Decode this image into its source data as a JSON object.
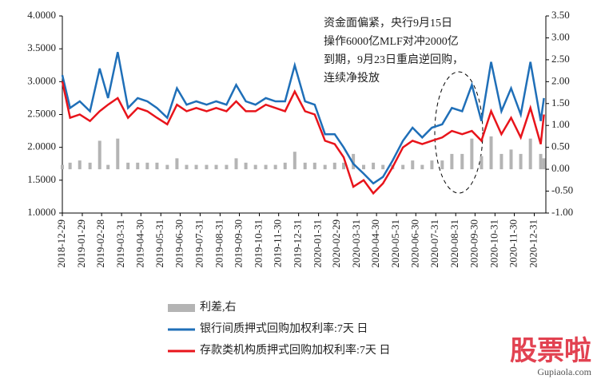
{
  "chart_data": {
    "type": "line",
    "annotation": [
      "资金面偏紧，央行9月15日",
      "操作6000亿MLF对冲2000亿",
      "到期，9月23日重启逆回购，",
      "连续净投放"
    ],
    "x": [
      "2018-12-29",
      "2019-01-10",
      "2019-01-25",
      "2019-02-10",
      "2019-02-25",
      "2019-03-10",
      "2019-03-25",
      "2019-04-10",
      "2019-04-25",
      "2019-05-10",
      "2019-05-25",
      "2019-06-10",
      "2019-06-25",
      "2019-07-10",
      "2019-07-25",
      "2019-08-10",
      "2019-08-25",
      "2019-09-10",
      "2019-09-25",
      "2019-10-10",
      "2019-10-25",
      "2019-11-10",
      "2019-11-25",
      "2019-12-10",
      "2019-12-25",
      "2020-01-10",
      "2020-01-25",
      "2020-02-10",
      "2020-02-25",
      "2020-03-10",
      "2020-03-25",
      "2020-04-10",
      "2020-04-25",
      "2020-05-10",
      "2020-05-25",
      "2020-06-10",
      "2020-06-25",
      "2020-07-10",
      "2020-07-25",
      "2020-08-10",
      "2020-08-25",
      "2020-09-10",
      "2020-09-25",
      "2020-10-10",
      "2020-10-25",
      "2020-11-10",
      "2020-11-25",
      "2020-12-10",
      "2020-12-25",
      "2021-01-10",
      "2021-01-15"
    ],
    "series": [
      {
        "name": "利差,右",
        "color": "#b4b4b4",
        "axis": "y2",
        "kind": "bar",
        "values": [
          0.1,
          0.15,
          0.2,
          0.15,
          0.65,
          0.1,
          0.7,
          0.15,
          0.15,
          0.15,
          0.15,
          0.1,
          0.25,
          0.1,
          0.1,
          0.1,
          0.1,
          0.1,
          0.25,
          0.15,
          0.1,
          0.1,
          0.1,
          0.15,
          0.4,
          0.15,
          0.15,
          0.1,
          0.15,
          0.15,
          0.35,
          0.1,
          0.15,
          0.1,
          0.1,
          0.1,
          0.2,
          0.1,
          0.2,
          0.2,
          0.35,
          0.35,
          0.7,
          0.3,
          0.75,
          0.35,
          0.45,
          0.35,
          0.7,
          0.35,
          0.25
        ]
      },
      {
        "name": "银行间质押式回购加权利率:7天 日",
        "color": "#1f6fb8",
        "kind": "line",
        "values": [
          3.1,
          2.6,
          2.7,
          2.55,
          3.2,
          2.75,
          3.45,
          2.6,
          2.75,
          2.7,
          2.6,
          2.45,
          2.9,
          2.65,
          2.7,
          2.65,
          2.7,
          2.65,
          2.95,
          2.7,
          2.65,
          2.75,
          2.7,
          2.7,
          3.25,
          2.7,
          2.65,
          2.2,
          2.2,
          2.0,
          1.75,
          1.6,
          1.45,
          1.55,
          1.8,
          2.1,
          2.3,
          2.15,
          2.3,
          2.35,
          2.6,
          2.55,
          2.95,
          2.4,
          3.3,
          2.55,
          2.9,
          2.5,
          3.3,
          2.4,
          2.75
        ]
      },
      {
        "name": "存款类机构质押式回购加权利率:7天 日",
        "color": "#e8141b",
        "kind": "line",
        "values": [
          3.0,
          2.45,
          2.5,
          2.4,
          2.55,
          2.65,
          2.75,
          2.45,
          2.6,
          2.55,
          2.45,
          2.35,
          2.65,
          2.55,
          2.6,
          2.55,
          2.6,
          2.55,
          2.7,
          2.55,
          2.55,
          2.65,
          2.6,
          2.55,
          2.85,
          2.55,
          2.5,
          2.1,
          2.05,
          1.85,
          1.4,
          1.5,
          1.3,
          1.45,
          1.7,
          2.0,
          2.1,
          2.05,
          2.1,
          2.15,
          2.25,
          2.2,
          2.25,
          2.1,
          2.55,
          2.2,
          2.45,
          2.15,
          2.6,
          2.05,
          2.5
        ]
      }
    ],
    "xlim": [
      "2018-12-29",
      "2021-01-18"
    ],
    "xticks": [
      "2018-12-29",
      "2019-01-29",
      "2019-02-28",
      "2019-03-31",
      "2019-04-30",
      "2019-05-31",
      "2019-06-30",
      "2019-07-31",
      "2019-08-31",
      "2019-09-30",
      "2019-10-31",
      "2019-11-30",
      "2019-12-31",
      "2020-01-31",
      "2020-02-29",
      "2020-03-31",
      "2020-04-30",
      "2020-05-31",
      "2020-06-30",
      "2020-07-31",
      "2020-08-31",
      "2020-09-30",
      "2020-10-31",
      "2020-11-30",
      "2020-12-31"
    ],
    "ylim": [
      1,
      4
    ],
    "yticks": [
      {
        "value": 1,
        "label": "1.0000"
      },
      {
        "value": 1.5,
        "label": "1.5000"
      },
      {
        "value": 2,
        "label": "2.0000"
      },
      {
        "value": 2.5,
        "label": "2.5000"
      },
      {
        "value": 3,
        "label": "3.0000"
      },
      {
        "value": 3.5,
        "label": "3.5000"
      },
      {
        "value": 4,
        "label": "4.0000"
      }
    ],
    "y2lim": [
      -1,
      3.5
    ],
    "y2ticks": [
      {
        "value": -1,
        "label": "-1.00"
      },
      {
        "value": -0.5,
        "label": "-0.50"
      },
      {
        "value": 0,
        "label": "0.00"
      },
      {
        "value": 0.5,
        "label": "0.50"
      },
      {
        "value": 1,
        "label": "1.00"
      },
      {
        "value": 1.5,
        "label": "1.50"
      },
      {
        "value": 2,
        "label": "2.00"
      },
      {
        "value": 2.5,
        "label": "2.50"
      },
      {
        "value": 3,
        "label": "3.00"
      },
      {
        "value": 3.5,
        "label": "3.50"
      }
    ],
    "watermark": [
      "股票啦",
      "Gupiaola.com"
    ]
  }
}
